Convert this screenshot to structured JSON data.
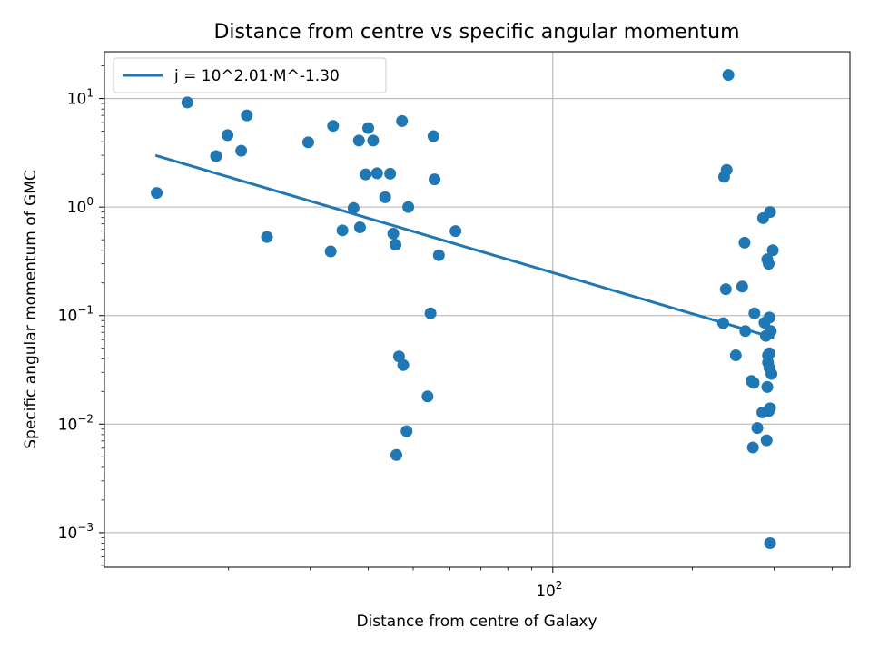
{
  "chart_data": {
    "type": "scatter",
    "title": "Distance from centre vs specific angular momentum",
    "xlabel": "Distance from centre of Galaxy",
    "ylabel": "Specific angular momentum of GMC",
    "x_scale": "log",
    "y_scale": "log",
    "xlim": [
      10.8,
      437
    ],
    "ylim": [
      0.00048,
      27
    ],
    "grid": true,
    "legend_position": "top-left",
    "x_ticks": [
      {
        "value": 100,
        "label": "10",
        "exp": "2"
      }
    ],
    "y_ticks": [
      {
        "value": 0.001,
        "label": "10",
        "exp": "−3"
      },
      {
        "value": 0.01,
        "label": "10",
        "exp": "−2"
      },
      {
        "value": 0.1,
        "label": "10",
        "exp": "−1"
      },
      {
        "value": 1,
        "label": "10",
        "exp": "0"
      },
      {
        "value": 10,
        "label": "10",
        "exp": "1"
      }
    ],
    "x_minor_ticks": [
      20,
      30,
      40,
      50,
      60,
      70,
      80,
      90,
      200,
      300,
      400
    ],
    "y_minor_ticks": [
      0.0005,
      0.0006,
      0.0007,
      0.0008,
      0.0009,
      0.002,
      0.003,
      0.004,
      0.005,
      0.006,
      0.007,
      0.008,
      0.009,
      0.02,
      0.03,
      0.04,
      0.05,
      0.06,
      0.07,
      0.08,
      0.09,
      0.2,
      0.3,
      0.4,
      0.5,
      0.6,
      0.7,
      0.8,
      0.9,
      2,
      3,
      4,
      5,
      6,
      7,
      8,
      9,
      20
    ],
    "series": [
      {
        "name": "",
        "kind": "scatter",
        "color": "#1f77b4",
        "points": [
          [
            14.0,
            1.35
          ],
          [
            16.3,
            9.2
          ],
          [
            18.8,
            2.95
          ],
          [
            19.9,
            4.6
          ],
          [
            21.3,
            3.3
          ],
          [
            21.9,
            7.0
          ],
          [
            24.2,
            0.53
          ],
          [
            29.7,
            3.95
          ],
          [
            33.2,
            0.39
          ],
          [
            33.6,
            5.6
          ],
          [
            35.2,
            0.61
          ],
          [
            37.2,
            0.98
          ],
          [
            38.2,
            4.1
          ],
          [
            38.4,
            0.65
          ],
          [
            39.5,
            2.0
          ],
          [
            40.0,
            5.35
          ],
          [
            41.0,
            4.1
          ],
          [
            41.8,
            2.05
          ],
          [
            43.5,
            1.23
          ],
          [
            44.6,
            2.03
          ],
          [
            45.3,
            0.57
          ],
          [
            45.8,
            0.45
          ],
          [
            46.0,
            0.0052
          ],
          [
            46.6,
            0.042
          ],
          [
            47.3,
            6.2
          ],
          [
            47.6,
            0.035
          ],
          [
            48.4,
            0.0086
          ],
          [
            48.8,
            1.0
          ],
          [
            53.7,
            0.018
          ],
          [
            54.5,
            0.105
          ],
          [
            55.3,
            4.5
          ],
          [
            55.6,
            1.8
          ],
          [
            56.8,
            0.36
          ],
          [
            61.7,
            0.6
          ],
          [
            233,
            0.085
          ],
          [
            234,
            1.9
          ],
          [
            236,
            0.175
          ],
          [
            237,
            2.2
          ],
          [
            239,
            16.5
          ],
          [
            248,
            0.043
          ],
          [
            256,
            0.185
          ],
          [
            259,
            0.47
          ],
          [
            260,
            0.072
          ],
          [
            268,
            0.025
          ],
          [
            270,
            0.0061
          ],
          [
            271,
            0.024
          ],
          [
            272,
            0.105
          ],
          [
            276,
            0.0092
          ],
          [
            283,
            0.0128
          ],
          [
            284,
            0.79
          ],
          [
            286,
            0.086
          ],
          [
            288,
            0.065
          ],
          [
            289,
            0.0071
          ],
          [
            290,
            0.33
          ],
          [
            290,
            0.022
          ],
          [
            291,
            0.037
          ],
          [
            291,
            0.043
          ],
          [
            292,
            0.0132
          ],
          [
            292,
            0.3
          ],
          [
            293,
            0.033
          ],
          [
            293,
            0.096
          ],
          [
            293,
            0.045
          ],
          [
            294,
            0.9
          ],
          [
            294,
            0.014
          ],
          [
            294,
            0.0008
          ],
          [
            295,
            0.072
          ],
          [
            296,
            0.029
          ],
          [
            298,
            0.4
          ]
        ]
      },
      {
        "name": "j = 10^2.01·M^-1.30",
        "kind": "line",
        "color": "#1f77b4",
        "x": [
          14.0,
          298
        ],
        "y": [
          2.97,
          0.0628
        ]
      }
    ]
  }
}
